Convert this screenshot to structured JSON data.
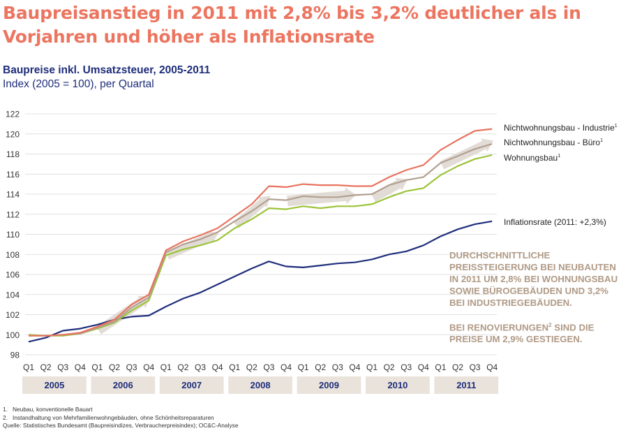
{
  "headline": "Baupreisanstieg in 2011 mit 2,8% bis 3,2% deutlicher als in Vorjahren und höher als Inflationsrate",
  "subtitle": "Baupreise inkl. Umsatzsteuer, 2005-2011",
  "unit_label": "Index (2005 = 100), per Quartal",
  "colors": {
    "headline": "#ec7560",
    "subtitle": "#1e2d7a",
    "callout": "#b09a86",
    "industrie": "#e8735f",
    "buero": "#b3a091",
    "wohnungsbau": "#9cc33a",
    "inflation": "#1e2d7a",
    "arrow": "#ddd6cf",
    "year_box": "#eae3dc"
  },
  "callout": {
    "paragraph1": "Durchschnittliche Preissteigerung bei Neubauten in 2011 um 2,8% bei Wohnungsbau sowie Bürogebäuden und 3,2% bei Industriegebäuden.",
    "paragraph2_pre": "Bei Renovierungen",
    "paragraph2_sup": "2",
    "paragraph2_post": " sind die Preise um 2,9% gestiegen."
  },
  "footnotes": [
    {
      "num": "1.",
      "text": "Neubau, konventionelle Bauart"
    },
    {
      "num": "2.",
      "text": "Instandhaltung von Mehrfamilienwohngebäuden, ohne Schönheitsreparaturen"
    }
  ],
  "source": "Quelle: Statistisches Bundesamt (Baupreisindizes, Verbraucherpreisindex); OC&C-Analyse",
  "chart_data": {
    "type": "line",
    "x": [
      "Q1",
      "Q2",
      "Q3",
      "Q4",
      "Q1",
      "Q2",
      "Q3",
      "Q4",
      "Q1",
      "Q2",
      "Q3",
      "Q4",
      "Q1",
      "Q2",
      "Q3",
      "Q4",
      "Q1",
      "Q2",
      "Q3",
      "Q4",
      "Q1",
      "Q2",
      "Q3",
      "Q4",
      "Q1",
      "Q2",
      "Q3",
      "Q4"
    ],
    "years": [
      "2005",
      "2006",
      "2007",
      "2008",
      "2009",
      "2010",
      "2011"
    ],
    "y_ticks": [
      "98",
      "100",
      "102",
      "104",
      "106",
      "108",
      "110",
      "112",
      "114",
      "116",
      "118",
      "120",
      "122"
    ],
    "ylim": [
      98,
      122
    ],
    "series": [
      {
        "name": "Nichtwohnungsbau - Industrie",
        "sup": "1",
        "color_key": "industrie",
        "values": [
          99.9,
          99.9,
          100.0,
          100.2,
          100.8,
          101.5,
          103.0,
          104.0,
          108.4,
          109.3,
          109.9,
          110.6,
          111.8,
          113.0,
          114.8,
          114.7,
          115.0,
          114.9,
          114.9,
          114.8,
          114.8,
          115.7,
          116.4,
          116.9,
          118.4,
          119.4,
          120.3,
          120.5
        ]
      },
      {
        "name": "Nichtwohnungsbau - Büro",
        "sup": "1",
        "color_key": "buero",
        "values": [
          99.9,
          99.9,
          100.0,
          100.1,
          100.7,
          101.3,
          102.7,
          103.7,
          108.2,
          109.0,
          109.5,
          110.2,
          111.3,
          112.3,
          113.5,
          113.4,
          113.8,
          113.7,
          113.7,
          113.9,
          114.0,
          114.9,
          115.4,
          115.7,
          117.1,
          117.8,
          118.5,
          119.0
        ]
      },
      {
        "name": "Wohnungsbau",
        "sup": "1",
        "color_key": "wohnungsbau",
        "values": [
          100.0,
          99.9,
          99.9,
          100.1,
          100.6,
          101.2,
          102.4,
          103.4,
          107.9,
          108.5,
          108.9,
          109.4,
          110.6,
          111.5,
          112.6,
          112.5,
          112.8,
          112.6,
          112.8,
          112.8,
          113.0,
          113.7,
          114.3,
          114.6,
          115.9,
          116.8,
          117.5,
          117.9
        ]
      },
      {
        "name": "Inflationsrate (2011: +2,3%)",
        "sup": "",
        "color_key": "inflation",
        "values": [
          99.3,
          99.7,
          100.4,
          100.6,
          101.0,
          101.5,
          101.8,
          101.9,
          102.8,
          103.6,
          104.2,
          105.0,
          105.8,
          106.6,
          107.3,
          106.8,
          106.7,
          106.9,
          107.1,
          107.2,
          107.5,
          108.0,
          108.3,
          108.9,
          109.8,
          110.5,
          111.0,
          111.3
        ]
      }
    ]
  }
}
